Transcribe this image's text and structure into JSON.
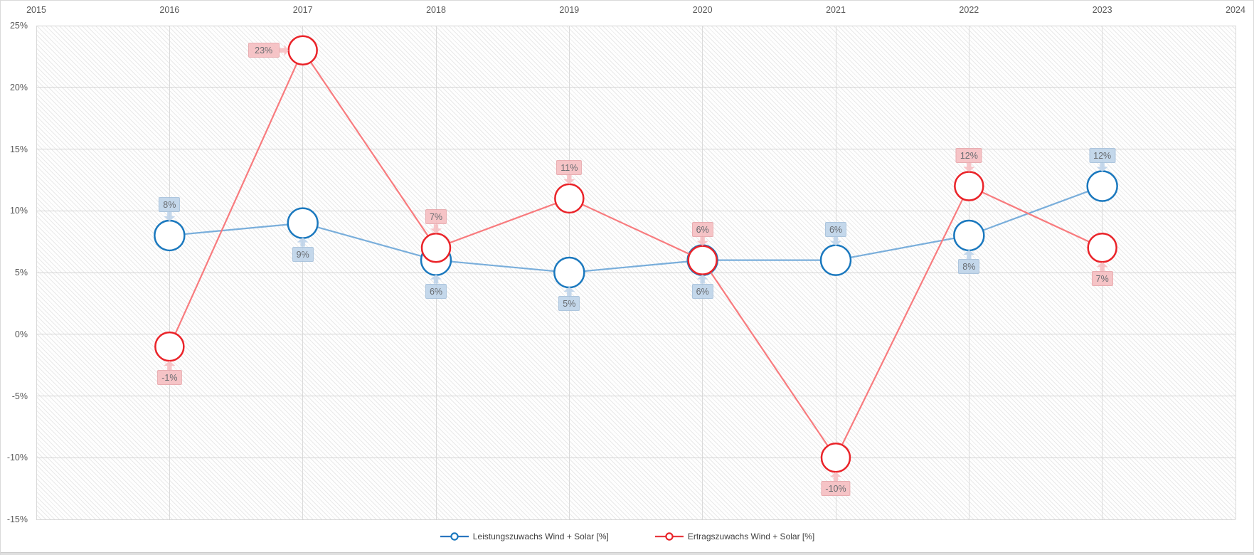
{
  "chart_data": {
    "type": "line",
    "title": "",
    "xlabel": "",
    "ylabel": "",
    "categories": [
      2016,
      2017,
      2018,
      2019,
      2020,
      2021,
      2022,
      2023
    ],
    "series": [
      {
        "name": "Leistungszuwachs Wind + Solar [%]",
        "values": [
          8,
          9,
          6,
          5,
          6,
          6,
          8,
          12
        ],
        "data_labels": [
          "8%",
          "9%",
          "6%",
          "5%",
          "6%",
          "6%",
          "8%",
          "12%"
        ],
        "label_side": [
          "above",
          "below",
          "below",
          "below",
          "below",
          "above",
          "below",
          "above"
        ],
        "line_color": "#79aedb",
        "marker_color": "#1a78be",
        "label_bg": "#bdd3e9",
        "label_border": "#a3bfda",
        "marker_style": "open-circle"
      },
      {
        "name": "Ertragszuwachs Wind + Solar [%]",
        "values": [
          -1,
          23,
          7,
          11,
          6,
          -10,
          12,
          7
        ],
        "data_labels": [
          "-1%",
          "23%",
          "7%",
          "11%",
          "6%",
          "-10%",
          "12%",
          "7%"
        ],
        "label_side": [
          "below",
          "left",
          "above",
          "above",
          "above",
          "below",
          "above",
          "below"
        ],
        "line_color": "#f87b7e",
        "marker_color": "#ea2329",
        "label_bg": "#f6bdc0",
        "label_border": "#e7a4a8",
        "marker_style": "open-circle"
      }
    ],
    "x_axis": {
      "position": "top",
      "tick_labels": [
        "2015",
        "2016",
        "2017",
        "2018",
        "2019",
        "2020",
        "2021",
        "2022",
        "2023",
        "2024"
      ],
      "min": 2015,
      "max": 2024
    },
    "y_axis": {
      "position": "left",
      "tick_labels": [
        "25%",
        "20%",
        "15%",
        "10%",
        "5%",
        "0%",
        "-5%",
        "-10%",
        "-15%"
      ],
      "min": -15,
      "max": 25,
      "step": 5
    },
    "grid": true,
    "legend_position": "bottom",
    "plot_background": "diagonal-hatch"
  },
  "legend": {
    "items": [
      {
        "label": "Leistungszuwachs Wind + Solar [%]"
      },
      {
        "label": "Ertragszuwachs Wind + Solar [%]"
      }
    ]
  }
}
